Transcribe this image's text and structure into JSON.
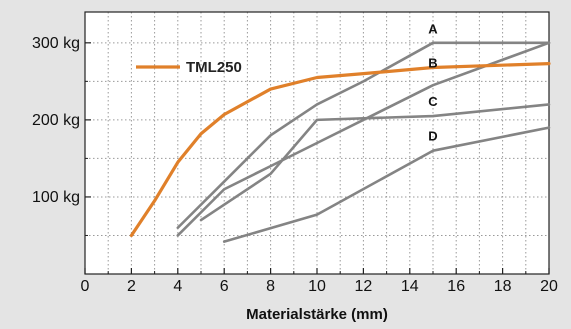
{
  "chart_data": {
    "type": "line",
    "xlabel": "Materialstärke (mm)",
    "ylabel": "",
    "xlim": [
      0,
      20
    ],
    "ylim": [
      0,
      340
    ],
    "xticks": [
      0,
      2,
      4,
      6,
      8,
      10,
      12,
      14,
      16,
      18,
      20
    ],
    "yticks": [
      {
        "value": 100,
        "label": "100 kg"
      },
      {
        "value": 200,
        "label": "200 kg"
      },
      {
        "value": 300,
        "label": "300 kg"
      }
    ],
    "grid": true,
    "legend": {
      "position": "top-left",
      "entries": [
        "TML250"
      ]
    },
    "colors": {
      "highlight": "#e0802a",
      "comparison": "#848484",
      "grid": "#9a9a9a",
      "plot_bg": "#ffffff",
      "page_bg": "#e4e4e4"
    },
    "series": [
      {
        "name": "TML250",
        "color": "#e0802a",
        "x": [
          2,
          3,
          4,
          5,
          6,
          8,
          10,
          12,
          15,
          20
        ],
        "y": [
          50,
          95,
          145,
          182,
          207,
          240,
          255,
          260,
          268,
          273
        ]
      },
      {
        "name": "A",
        "color": "#848484",
        "x": [
          4,
          6,
          8,
          10,
          12,
          15,
          20
        ],
        "y": [
          60,
          120,
          180,
          220,
          250,
          300,
          300
        ]
      },
      {
        "name": "B",
        "color": "#848484",
        "x": [
          4,
          6,
          8,
          10,
          15,
          20
        ],
        "y": [
          50,
          110,
          140,
          170,
          245,
          300
        ]
      },
      {
        "name": "C",
        "color": "#848484",
        "x": [
          5,
          8,
          10,
          15,
          20
        ],
        "y": [
          70,
          130,
          200,
          205,
          220
        ]
      },
      {
        "name": "D",
        "color": "#848484",
        "x": [
          6,
          10,
          15,
          20
        ],
        "y": [
          42,
          77,
          160,
          190
        ]
      }
    ],
    "annotations": [
      {
        "text": "A",
        "x": 15,
        "y": 312
      },
      {
        "text": "B",
        "x": 15,
        "y": 268
      },
      {
        "text": "C",
        "x": 15,
        "y": 218
      },
      {
        "text": "D",
        "x": 15,
        "y": 173
      }
    ]
  }
}
